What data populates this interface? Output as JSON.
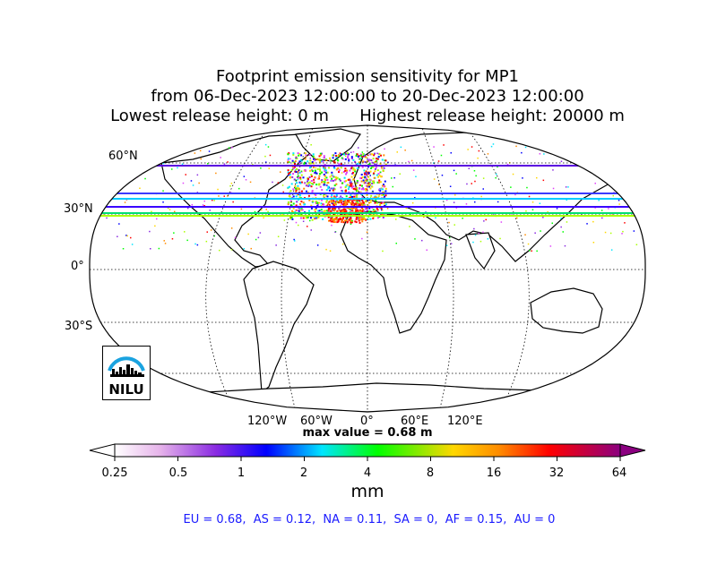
{
  "title": {
    "line1": "Footprint emission sensitivity for MP1",
    "line2": "from 06-Dec-2023 12:00:00 to 20-Dec-2023 12:00:00",
    "line3": "Lowest release height: 0 m      Highest release height: 20000 m"
  },
  "map": {
    "projection": "robinson",
    "lat_labels": [
      "60°N",
      "30°N",
      "0°",
      "30°S"
    ],
    "lon_labels": [
      "120°W",
      "60°W",
      "0°",
      "60°E",
      "120°E"
    ]
  },
  "max_value_label": "max value = 0.68 m",
  "colorbar": {
    "tick_labels": [
      "0.25",
      "0.5",
      "1",
      "2",
      "4",
      "8",
      "16",
      "32",
      "64"
    ],
    "unit": "mm",
    "colors": [
      "#ffffff",
      "#d9a6e6",
      "#8a2be2",
      "#0000ff",
      "#00e5ff",
      "#00ff00",
      "#ffd700",
      "#ff8c00",
      "#ff0000",
      "#8b0080"
    ]
  },
  "region_summary": "EU = 0.68,  AS = 0.12,  NA = 0.11,  SA = 0,  AF = 0.15,  AU = 0",
  "logo": {
    "text": "NILU"
  }
}
